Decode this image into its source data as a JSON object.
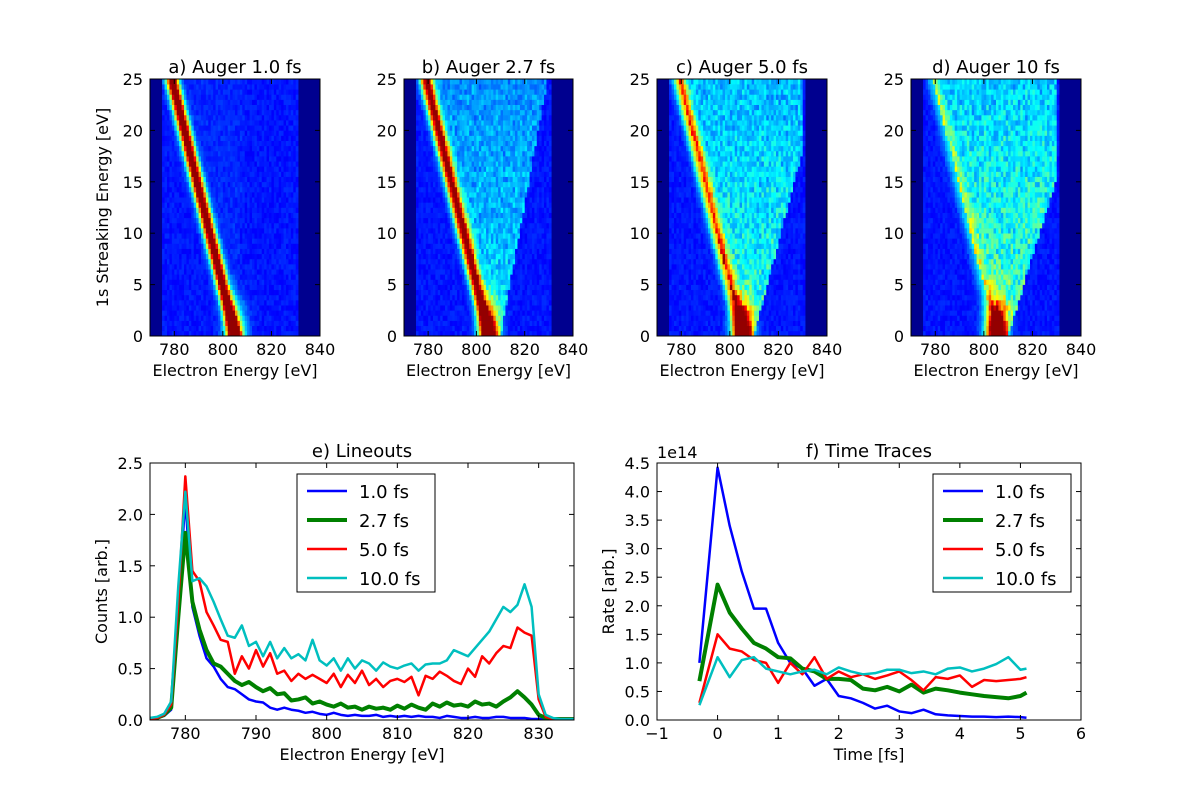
{
  "colors": {
    "line_1fs": "#0000ff",
    "line_2_7fs": "#008000",
    "line_5fs": "#ff0000",
    "line_10fs": "#00bfbf",
    "heatmap_background": "#00008f"
  },
  "chart_data": [
    {
      "id": "a",
      "type": "heatmap",
      "title": "a) Auger 1.0 fs",
      "xlabel": "Electron Energy [eV]",
      "ylabel": "1s Streaking Energy [eV]",
      "xlim": [
        770,
        840
      ],
      "ylim": [
        0,
        25
      ],
      "xticks": [
        "780",
        "800",
        "820",
        "840"
      ],
      "yticks": [
        "0",
        "5",
        "10",
        "15",
        "20",
        "25"
      ],
      "colormap": "jet",
      "ridge": [
        [
          805,
          0
        ],
        [
          779,
          25
        ]
      ],
      "ridge_intensity": 1.0,
      "spread": 0.15,
      "spread_intensity": 0.03,
      "bottom_blob": 0.5
    },
    {
      "id": "b",
      "type": "heatmap",
      "title": "b) Auger 2.7 fs",
      "xlabel": "Electron Energy [eV]",
      "ylabel": "",
      "xlim": [
        770,
        840
      ],
      "ylim": [
        0,
        25
      ],
      "xticks": [
        "780",
        "800",
        "820",
        "840"
      ],
      "yticks": [
        "0",
        "5",
        "10",
        "15",
        "20",
        "25"
      ],
      "colormap": "jet",
      "ridge": [
        [
          805,
          0
        ],
        [
          779,
          25
        ]
      ],
      "ridge_intensity": 0.85,
      "spread": 0.6,
      "spread_intensity": 0.25,
      "bottom_blob": 0.7
    },
    {
      "id": "c",
      "type": "heatmap",
      "title": "c) Auger 5.0 fs",
      "xlabel": "Electron Energy [eV]",
      "ylabel": "",
      "xlim": [
        770,
        840
      ],
      "ylim": [
        0,
        25
      ],
      "xticks": [
        "780",
        "800",
        "820",
        "840"
      ],
      "yticks": [
        "0",
        "5",
        "10",
        "15",
        "20",
        "25"
      ],
      "colormap": "jet",
      "ridge": [
        [
          805,
          0
        ],
        [
          779,
          25
        ]
      ],
      "ridge_intensity": 0.55,
      "spread": 0.85,
      "spread_intensity": 0.33,
      "bottom_blob": 0.85
    },
    {
      "id": "d",
      "type": "heatmap",
      "title": "d) Auger 10 fs",
      "xlabel": "Electron Energy [eV]",
      "ylabel": "",
      "xlim": [
        770,
        840
      ],
      "ylim": [
        0,
        25
      ],
      "xticks": [
        "780",
        "800",
        "820",
        "840"
      ],
      "yticks": [
        "0",
        "5",
        "10",
        "15",
        "20",
        "25"
      ],
      "colormap": "jet",
      "ridge": [
        [
          805,
          0
        ],
        [
          779,
          25
        ]
      ],
      "ridge_intensity": 0.2,
      "spread": 1.0,
      "spread_intensity": 0.38,
      "bottom_blob": 1.0
    },
    {
      "id": "e",
      "type": "line",
      "title": "e) Lineouts",
      "xlabel": "Electron Energy [eV]",
      "ylabel": "Counts [arb.]",
      "xlim": [
        775,
        835
      ],
      "ylim": [
        0,
        2.5
      ],
      "xticks": [
        "780",
        "790",
        "800",
        "810",
        "820",
        "830"
      ],
      "yticks": [
        "0.0",
        "0.5",
        "1.0",
        "1.5",
        "2.0",
        "2.5"
      ],
      "legend_position": "top-center",
      "x": [
        775,
        776,
        777,
        778,
        779,
        780,
        781,
        782,
        783,
        784,
        785,
        786,
        787,
        788,
        789,
        790,
        791,
        792,
        793,
        794,
        795,
        796,
        797,
        798,
        799,
        800,
        801,
        802,
        803,
        804,
        805,
        806,
        807,
        808,
        809,
        810,
        811,
        812,
        813,
        814,
        815,
        816,
        817,
        818,
        819,
        820,
        821,
        822,
        823,
        824,
        825,
        826,
        827,
        828,
        829,
        830,
        831,
        832,
        833,
        834,
        835
      ],
      "series": [
        {
          "name": "1.0 fs",
          "color": "#0000ff",
          "width": 2.5,
          "values": [
            0.01,
            0.02,
            0.04,
            0.1,
            1.1,
            2.15,
            1.1,
            0.82,
            0.6,
            0.52,
            0.4,
            0.32,
            0.3,
            0.25,
            0.2,
            0.18,
            0.17,
            0.12,
            0.1,
            0.12,
            0.1,
            0.09,
            0.07,
            0.08,
            0.06,
            0.05,
            0.07,
            0.05,
            0.04,
            0.05,
            0.04,
            0.04,
            0.05,
            0.03,
            0.04,
            0.03,
            0.04,
            0.03,
            0.04,
            0.03,
            0.03,
            0.02,
            0.04,
            0.03,
            0.02,
            0.02,
            0.03,
            0.02,
            0.02,
            0.03,
            0.03,
            0.02,
            0.02,
            0.02,
            0.01,
            0.01,
            0.01,
            0.01,
            0.01,
            0.01,
            0.01
          ]
        },
        {
          "name": "2.7 fs",
          "color": "#008000",
          "width": 4,
          "values": [
            0.01,
            0.02,
            0.05,
            0.12,
            1.0,
            1.82,
            1.15,
            0.88,
            0.68,
            0.55,
            0.52,
            0.45,
            0.38,
            0.34,
            0.37,
            0.32,
            0.28,
            0.31,
            0.25,
            0.26,
            0.19,
            0.2,
            0.22,
            0.16,
            0.18,
            0.15,
            0.13,
            0.16,
            0.12,
            0.13,
            0.1,
            0.13,
            0.11,
            0.12,
            0.1,
            0.14,
            0.11,
            0.15,
            0.12,
            0.1,
            0.16,
            0.13,
            0.17,
            0.14,
            0.15,
            0.13,
            0.18,
            0.15,
            0.16,
            0.13,
            0.18,
            0.22,
            0.28,
            0.22,
            0.15,
            0.05,
            0.02,
            0.01,
            0.01,
            0.01,
            0.01
          ]
        },
        {
          "name": "5.0 fs",
          "color": "#ff0000",
          "width": 2.5,
          "values": [
            0.01,
            0.02,
            0.05,
            0.15,
            1.15,
            2.37,
            1.45,
            1.35,
            1.05,
            0.92,
            0.78,
            0.76,
            0.45,
            0.62,
            0.5,
            0.68,
            0.52,
            0.65,
            0.45,
            0.48,
            0.38,
            0.45,
            0.4,
            0.44,
            0.4,
            0.36,
            0.45,
            0.32,
            0.44,
            0.36,
            0.48,
            0.34,
            0.4,
            0.32,
            0.38,
            0.4,
            0.37,
            0.42,
            0.24,
            0.43,
            0.4,
            0.47,
            0.43,
            0.38,
            0.35,
            0.5,
            0.42,
            0.62,
            0.55,
            0.65,
            0.72,
            0.7,
            0.9,
            0.85,
            0.82,
            0.2,
            0.03,
            0.01,
            0.01,
            0.01,
            0.01
          ]
        },
        {
          "name": "10.0 fs",
          "color": "#00bfbf",
          "width": 2.5,
          "values": [
            0.02,
            0.03,
            0.06,
            0.18,
            1.3,
            2.22,
            1.35,
            1.38,
            1.3,
            1.15,
            0.98,
            0.82,
            0.8,
            0.92,
            0.72,
            0.76,
            0.62,
            0.76,
            0.6,
            0.7,
            0.6,
            0.64,
            0.58,
            0.78,
            0.58,
            0.53,
            0.6,
            0.48,
            0.6,
            0.5,
            0.58,
            0.55,
            0.48,
            0.56,
            0.52,
            0.5,
            0.53,
            0.55,
            0.48,
            0.54,
            0.55,
            0.55,
            0.58,
            0.68,
            0.65,
            0.62,
            0.7,
            0.78,
            0.86,
            0.98,
            1.1,
            1.05,
            1.12,
            1.32,
            1.1,
            0.25,
            0.05,
            0.02,
            0.01,
            0.01,
            0.01
          ]
        }
      ]
    },
    {
      "id": "f",
      "type": "line",
      "title": "f) Time Traces",
      "xlabel": "Time [fs]",
      "ylabel": "Rate [arb.]",
      "offset_label": "1e14",
      "xlim": [
        -1,
        6
      ],
      "ylim": [
        0,
        4.5
      ],
      "xticks": [
        "−1",
        "0",
        "1",
        "2",
        "3",
        "4",
        "5",
        "6"
      ],
      "yticks": [
        "0.0",
        "0.5",
        "1.0",
        "1.5",
        "2.0",
        "2.5",
        "3.0",
        "3.5",
        "4.0",
        "4.5"
      ],
      "legend_position": "top-right",
      "x": [
        -0.3,
        0.0,
        0.2,
        0.4,
        0.6,
        0.8,
        1.0,
        1.2,
        1.4,
        1.6,
        1.8,
        2.0,
        2.2,
        2.4,
        2.6,
        2.8,
        3.0,
        3.2,
        3.4,
        3.6,
        3.8,
        4.0,
        4.2,
        4.4,
        4.6,
        4.8,
        5.0,
        5.1
      ],
      "series": [
        {
          "name": "1.0 fs",
          "color": "#0000ff",
          "width": 2.5,
          "values": [
            1.0,
            4.42,
            3.4,
            2.6,
            1.95,
            1.95,
            1.35,
            1.0,
            0.9,
            0.6,
            0.72,
            0.42,
            0.38,
            0.3,
            0.2,
            0.25,
            0.15,
            0.12,
            0.18,
            0.1,
            0.08,
            0.07,
            0.06,
            0.06,
            0.05,
            0.06,
            0.05,
            0.04
          ]
        },
        {
          "name": "2.7 fs",
          "color": "#008000",
          "width": 4,
          "values": [
            0.68,
            2.37,
            1.88,
            1.6,
            1.35,
            1.25,
            1.1,
            1.08,
            0.9,
            0.85,
            0.72,
            0.72,
            0.7,
            0.55,
            0.52,
            0.58,
            0.5,
            0.62,
            0.48,
            0.55,
            0.52,
            0.48,
            0.45,
            0.42,
            0.4,
            0.38,
            0.42,
            0.48
          ]
        },
        {
          "name": "5.0 fs",
          "color": "#ff0000",
          "width": 2.5,
          "values": [
            0.3,
            1.5,
            1.25,
            1.2,
            1.05,
            1.0,
            0.65,
            1.0,
            0.8,
            1.1,
            0.72,
            0.85,
            0.75,
            0.8,
            0.72,
            0.78,
            0.85,
            0.7,
            0.52,
            0.75,
            0.72,
            0.78,
            0.58,
            0.7,
            0.68,
            0.7,
            0.72,
            0.75
          ]
        },
        {
          "name": "10.0 fs",
          "color": "#00bfbf",
          "width": 2.5,
          "values": [
            0.26,
            1.1,
            0.75,
            1.05,
            1.1,
            0.9,
            0.85,
            0.8,
            0.85,
            0.88,
            0.8,
            0.92,
            0.85,
            0.8,
            0.82,
            0.88,
            0.88,
            0.82,
            0.85,
            0.8,
            0.9,
            0.92,
            0.85,
            0.9,
            0.98,
            1.1,
            0.88,
            0.9
          ]
        }
      ]
    }
  ]
}
